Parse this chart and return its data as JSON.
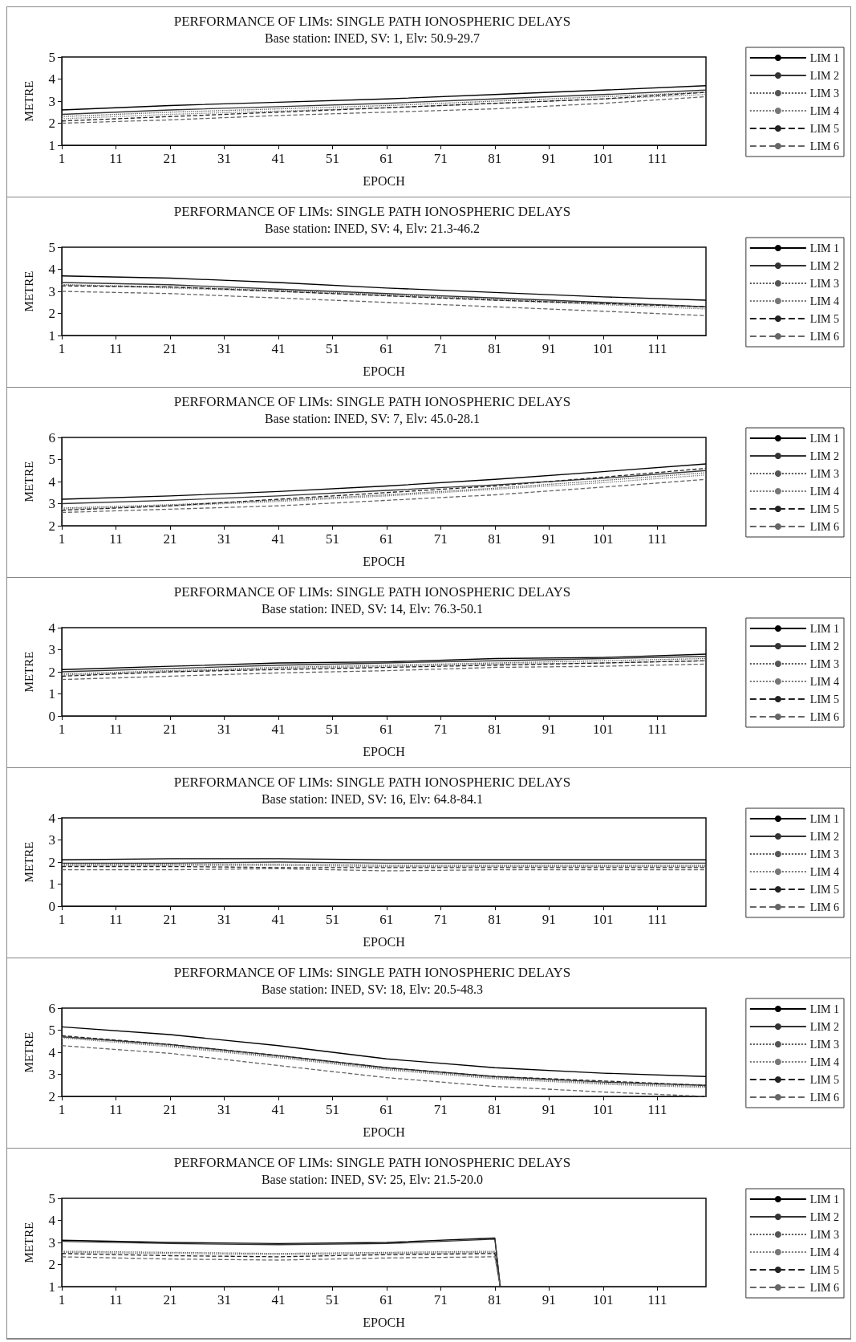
{
  "chart_data": [
    {
      "type": "line",
      "title": "PERFORMANCE OF LIMs: SINGLE PATH IONOSPHERIC DELAYS",
      "subtitle": "Base station: INED, SV: 1, Elv: 50.9-29.7",
      "xlabel": "EPOCH",
      "ylabel": "METRE",
      "x": [
        1,
        21,
        41,
        61,
        81,
        101,
        120
      ],
      "xlim": [
        1,
        120
      ],
      "xticks": [
        1,
        11,
        21,
        31,
        41,
        51,
        61,
        71,
        81,
        91,
        101,
        111
      ],
      "ylim": [
        1,
        5
      ],
      "yticks": [
        1,
        2,
        3,
        4,
        5
      ],
      "grid": false,
      "legend": "right",
      "marker": "none",
      "series": [
        {
          "name": "LIM 1",
          "color": "#000000",
          "line_style": "solid",
          "values": [
            2.6,
            2.8,
            2.95,
            3.1,
            3.3,
            3.5,
            3.7
          ]
        },
        {
          "name": "LIM 2",
          "color": "#333333",
          "line_style": "solid",
          "values": [
            2.4,
            2.6,
            2.75,
            2.9,
            3.1,
            3.3,
            3.5
          ]
        },
        {
          "name": "LIM 3",
          "color": "#555555",
          "line_style": "dotted",
          "values": [
            2.3,
            2.5,
            2.65,
            2.8,
            3.0,
            3.2,
            3.4
          ]
        },
        {
          "name": "LIM 4",
          "color": "#777777",
          "line_style": "dotted",
          "values": [
            2.2,
            2.4,
            2.55,
            2.7,
            2.9,
            3.1,
            3.3
          ]
        },
        {
          "name": "LIM 5",
          "color": "#222222",
          "line_style": "dashed",
          "values": [
            2.1,
            2.3,
            2.5,
            2.7,
            2.9,
            3.1,
            3.4
          ]
        },
        {
          "name": "LIM 6",
          "color": "#666666",
          "line_style": "dashed",
          "values": [
            2.0,
            2.15,
            2.35,
            2.5,
            2.65,
            2.9,
            3.2
          ]
        }
      ]
    },
    {
      "type": "line",
      "title": "PERFORMANCE OF LIMs: SINGLE PATH IONOSPHERIC DELAYS",
      "subtitle": "Base station: INED, SV: 4, Elv: 21.3-46.2",
      "xlabel": "EPOCH",
      "ylabel": "METRE",
      "x": [
        1,
        21,
        41,
        61,
        81,
        101,
        120
      ],
      "xlim": [
        1,
        120
      ],
      "xticks": [
        1,
        11,
        21,
        31,
        41,
        51,
        61,
        71,
        81,
        91,
        101,
        111
      ],
      "ylim": [
        1,
        5
      ],
      "yticks": [
        1,
        2,
        3,
        4,
        5
      ],
      "grid": false,
      "legend": "right",
      "marker": "none",
      "series": [
        {
          "name": "LIM 1",
          "color": "#000000",
          "line_style": "solid",
          "values": [
            3.7,
            3.6,
            3.4,
            3.15,
            2.95,
            2.75,
            2.6
          ]
        },
        {
          "name": "LIM 2",
          "color": "#333333",
          "line_style": "solid",
          "values": [
            3.4,
            3.3,
            3.1,
            2.9,
            2.7,
            2.5,
            2.3
          ]
        },
        {
          "name": "LIM 3",
          "color": "#555555",
          "line_style": "dotted",
          "values": [
            3.3,
            3.2,
            3.05,
            2.85,
            2.65,
            2.45,
            2.3
          ]
        },
        {
          "name": "LIM 4",
          "color": "#777777",
          "line_style": "dotted",
          "values": [
            3.3,
            3.15,
            3.0,
            2.8,
            2.6,
            2.4,
            2.2
          ]
        },
        {
          "name": "LIM 5",
          "color": "#222222",
          "line_style": "dashed",
          "values": [
            3.25,
            3.2,
            3.0,
            2.8,
            2.6,
            2.45,
            2.3
          ]
        },
        {
          "name": "LIM 6",
          "color": "#666666",
          "line_style": "dashed",
          "values": [
            3.0,
            2.9,
            2.7,
            2.5,
            2.3,
            2.1,
            1.9
          ]
        }
      ]
    },
    {
      "type": "line",
      "title": "PERFORMANCE OF LIMs: SINGLE PATH IONOSPHERIC DELAYS",
      "subtitle": "Base station: INED, SV: 7, Elv: 45.0-28.1",
      "xlabel": "EPOCH",
      "ylabel": "METRE",
      "x": [
        1,
        21,
        41,
        61,
        81,
        101,
        120
      ],
      "xlim": [
        1,
        120
      ],
      "xticks": [
        1,
        11,
        21,
        31,
        41,
        51,
        61,
        71,
        81,
        91,
        101,
        111
      ],
      "ylim": [
        2,
        6
      ],
      "yticks": [
        2,
        3,
        4,
        5,
        6
      ],
      "grid": false,
      "legend": "right",
      "marker": "none",
      "series": [
        {
          "name": "LIM 1",
          "color": "#000000",
          "line_style": "solid",
          "values": [
            3.2,
            3.35,
            3.55,
            3.8,
            4.1,
            4.45,
            4.8
          ]
        },
        {
          "name": "LIM 2",
          "color": "#333333",
          "line_style": "solid",
          "values": [
            3.0,
            3.15,
            3.35,
            3.6,
            3.85,
            4.15,
            4.5
          ]
        },
        {
          "name": "LIM 3",
          "color": "#555555",
          "line_style": "dotted",
          "values": [
            2.8,
            2.95,
            3.15,
            3.4,
            3.7,
            4.05,
            4.4
          ]
        },
        {
          "name": "LIM 4",
          "color": "#777777",
          "line_style": "dotted",
          "values": [
            2.75,
            2.9,
            3.1,
            3.35,
            3.65,
            3.95,
            4.3
          ]
        },
        {
          "name": "LIM 5",
          "color": "#222222",
          "line_style": "dashed",
          "values": [
            2.7,
            2.9,
            3.2,
            3.5,
            3.8,
            4.2,
            4.6
          ]
        },
        {
          "name": "LIM 6",
          "color": "#666666",
          "line_style": "dashed",
          "values": [
            2.6,
            2.75,
            2.9,
            3.15,
            3.4,
            3.75,
            4.1
          ]
        }
      ]
    },
    {
      "type": "line",
      "title": "PERFORMANCE OF LIMs: SINGLE PATH IONOSPHERIC DELAYS",
      "subtitle": "Base station: INED, SV: 14, Elv: 76.3-50.1",
      "xlabel": "EPOCH",
      "ylabel": "METRE",
      "x": [
        1,
        21,
        41,
        61,
        81,
        101,
        120
      ],
      "xlim": [
        1,
        120
      ],
      "xticks": [
        1,
        11,
        21,
        31,
        41,
        51,
        61,
        71,
        81,
        91,
        101,
        111
      ],
      "ylim": [
        0,
        4
      ],
      "yticks": [
        0,
        1,
        2,
        3,
        4
      ],
      "grid": false,
      "legend": "right",
      "marker": "none",
      "series": [
        {
          "name": "LIM 1",
          "color": "#000000",
          "line_style": "solid",
          "values": [
            2.1,
            2.25,
            2.4,
            2.45,
            2.6,
            2.65,
            2.8
          ]
        },
        {
          "name": "LIM 2",
          "color": "#333333",
          "line_style": "solid",
          "values": [
            2.0,
            2.15,
            2.3,
            2.4,
            2.5,
            2.6,
            2.7
          ]
        },
        {
          "name": "LIM 3",
          "color": "#555555",
          "line_style": "dotted",
          "values": [
            1.9,
            2.05,
            2.2,
            2.3,
            2.4,
            2.5,
            2.6
          ]
        },
        {
          "name": "LIM 4",
          "color": "#777777",
          "line_style": "dotted",
          "values": [
            1.85,
            2.0,
            2.15,
            2.25,
            2.35,
            2.4,
            2.5
          ]
        },
        {
          "name": "LIM 5",
          "color": "#222222",
          "line_style": "dashed",
          "values": [
            1.8,
            2.0,
            2.1,
            2.2,
            2.3,
            2.4,
            2.5
          ]
        },
        {
          "name": "LIM 6",
          "color": "#666666",
          "line_style": "dashed",
          "values": [
            1.65,
            1.8,
            1.95,
            2.05,
            2.2,
            2.25,
            2.35
          ]
        }
      ]
    },
    {
      "type": "line",
      "title": "PERFORMANCE OF LIMs: SINGLE PATH IONOSPHERIC DELAYS",
      "subtitle": "Base station: INED, SV: 16, Elv: 64.8-84.1",
      "xlabel": "EPOCH",
      "ylabel": "METRE",
      "x": [
        1,
        21,
        41,
        61,
        81,
        101,
        120
      ],
      "xlim": [
        1,
        120
      ],
      "xticks": [
        1,
        11,
        21,
        31,
        41,
        51,
        61,
        71,
        81,
        91,
        101,
        111
      ],
      "ylim": [
        0,
        4
      ],
      "yticks": [
        0,
        1,
        2,
        3,
        4
      ],
      "grid": false,
      "legend": "right",
      "marker": "none",
      "series": [
        {
          "name": "LIM 1",
          "color": "#000000",
          "line_style": "solid",
          "values": [
            2.1,
            2.15,
            2.15,
            2.1,
            2.1,
            2.1,
            2.1
          ]
        },
        {
          "name": "LIM 2",
          "color": "#333333",
          "line_style": "solid",
          "values": [
            1.95,
            1.95,
            2.0,
            1.95,
            1.95,
            1.95,
            1.95
          ]
        },
        {
          "name": "LIM 3",
          "color": "#555555",
          "line_style": "dotted",
          "values": [
            1.9,
            1.9,
            1.9,
            1.85,
            1.85,
            1.85,
            1.85
          ]
        },
        {
          "name": "LIM 4",
          "color": "#777777",
          "line_style": "dotted",
          "values": [
            1.85,
            1.85,
            1.85,
            1.8,
            1.8,
            1.8,
            1.8
          ]
        },
        {
          "name": "LIM 5",
          "color": "#222222",
          "line_style": "dashed",
          "values": [
            1.8,
            1.8,
            1.75,
            1.75,
            1.75,
            1.75,
            1.75
          ]
        },
        {
          "name": "LIM 6",
          "color": "#666666",
          "line_style": "dashed",
          "values": [
            1.65,
            1.65,
            1.7,
            1.6,
            1.65,
            1.65,
            1.65
          ]
        }
      ]
    },
    {
      "type": "line",
      "title": "PERFORMANCE OF LIMs: SINGLE PATH IONOSPHERIC DELAYS",
      "subtitle": "Base station: INED, SV: 18, Elv: 20.5-48.3",
      "xlabel": "EPOCH",
      "ylabel": "METRE",
      "x": [
        1,
        21,
        41,
        61,
        81,
        101,
        120
      ],
      "xlim": [
        1,
        120
      ],
      "xticks": [
        1,
        11,
        21,
        31,
        41,
        51,
        61,
        71,
        81,
        91,
        101,
        111
      ],
      "ylim": [
        2,
        6
      ],
      "yticks": [
        2,
        3,
        4,
        5,
        6
      ],
      "grid": false,
      "legend": "right",
      "marker": "none",
      "series": [
        {
          "name": "LIM 1",
          "color": "#000000",
          "line_style": "solid",
          "values": [
            5.15,
            4.8,
            4.3,
            3.7,
            3.3,
            3.05,
            2.9
          ]
        },
        {
          "name": "LIM 2",
          "color": "#333333",
          "line_style": "solid",
          "values": [
            4.7,
            4.35,
            3.85,
            3.3,
            2.9,
            2.65,
            2.5
          ]
        },
        {
          "name": "LIM 3",
          "color": "#555555",
          "line_style": "dotted",
          "values": [
            4.7,
            4.3,
            3.8,
            3.25,
            2.85,
            2.6,
            2.45
          ]
        },
        {
          "name": "LIM 4",
          "color": "#777777",
          "line_style": "dotted",
          "values": [
            4.65,
            4.25,
            3.75,
            3.2,
            2.8,
            2.55,
            2.4
          ]
        },
        {
          "name": "LIM 5",
          "color": "#222222",
          "line_style": "dashed",
          "values": [
            4.75,
            4.35,
            3.85,
            3.3,
            2.9,
            2.7,
            2.5
          ]
        },
        {
          "name": "LIM 6",
          "color": "#666666",
          "line_style": "dashed",
          "values": [
            4.3,
            3.95,
            3.4,
            2.85,
            2.45,
            2.2,
            2.0
          ]
        }
      ]
    },
    {
      "type": "line",
      "title": "PERFORMANCE OF LIMs: SINGLE PATH IONOSPHERIC DELAYS",
      "subtitle": "Base station: INED, SV: 25, Elv: 21.5-20.0",
      "xlabel": "EPOCH",
      "ylabel": "METRE",
      "x": [
        1,
        21,
        41,
        61,
        81,
        82
      ],
      "xlim": [
        1,
        120
      ],
      "xticks": [
        1,
        11,
        21,
        31,
        41,
        51,
        61,
        71,
        81,
        91,
        101,
        111
      ],
      "ylim": [
        1,
        5
      ],
      "yticks": [
        1,
        2,
        3,
        4,
        5
      ],
      "grid": false,
      "legend": "right",
      "marker": "none",
      "series": [
        {
          "name": "LIM 1",
          "color": "#000000",
          "line_style": "solid",
          "values": [
            3.1,
            3.0,
            2.95,
            3.0,
            3.2,
            1.0
          ]
        },
        {
          "name": "LIM 2",
          "color": "#333333",
          "line_style": "solid",
          "values": [
            3.05,
            2.95,
            2.9,
            2.95,
            3.15,
            1.0
          ]
        },
        {
          "name": "LIM 3",
          "color": "#555555",
          "line_style": "dotted",
          "values": [
            2.6,
            2.55,
            2.5,
            2.55,
            2.6,
            1.0
          ]
        },
        {
          "name": "LIM 4",
          "color": "#777777",
          "line_style": "dotted",
          "values": [
            2.55,
            2.5,
            2.45,
            2.5,
            2.55,
            1.0
          ]
        },
        {
          "name": "LIM 5",
          "color": "#222222",
          "line_style": "dashed",
          "values": [
            2.5,
            2.4,
            2.35,
            2.45,
            2.5,
            1.0
          ]
        },
        {
          "name": "LIM 6",
          "color": "#666666",
          "line_style": "dashed",
          "values": [
            2.35,
            2.25,
            2.2,
            2.3,
            2.35,
            1.0
          ]
        }
      ]
    }
  ]
}
